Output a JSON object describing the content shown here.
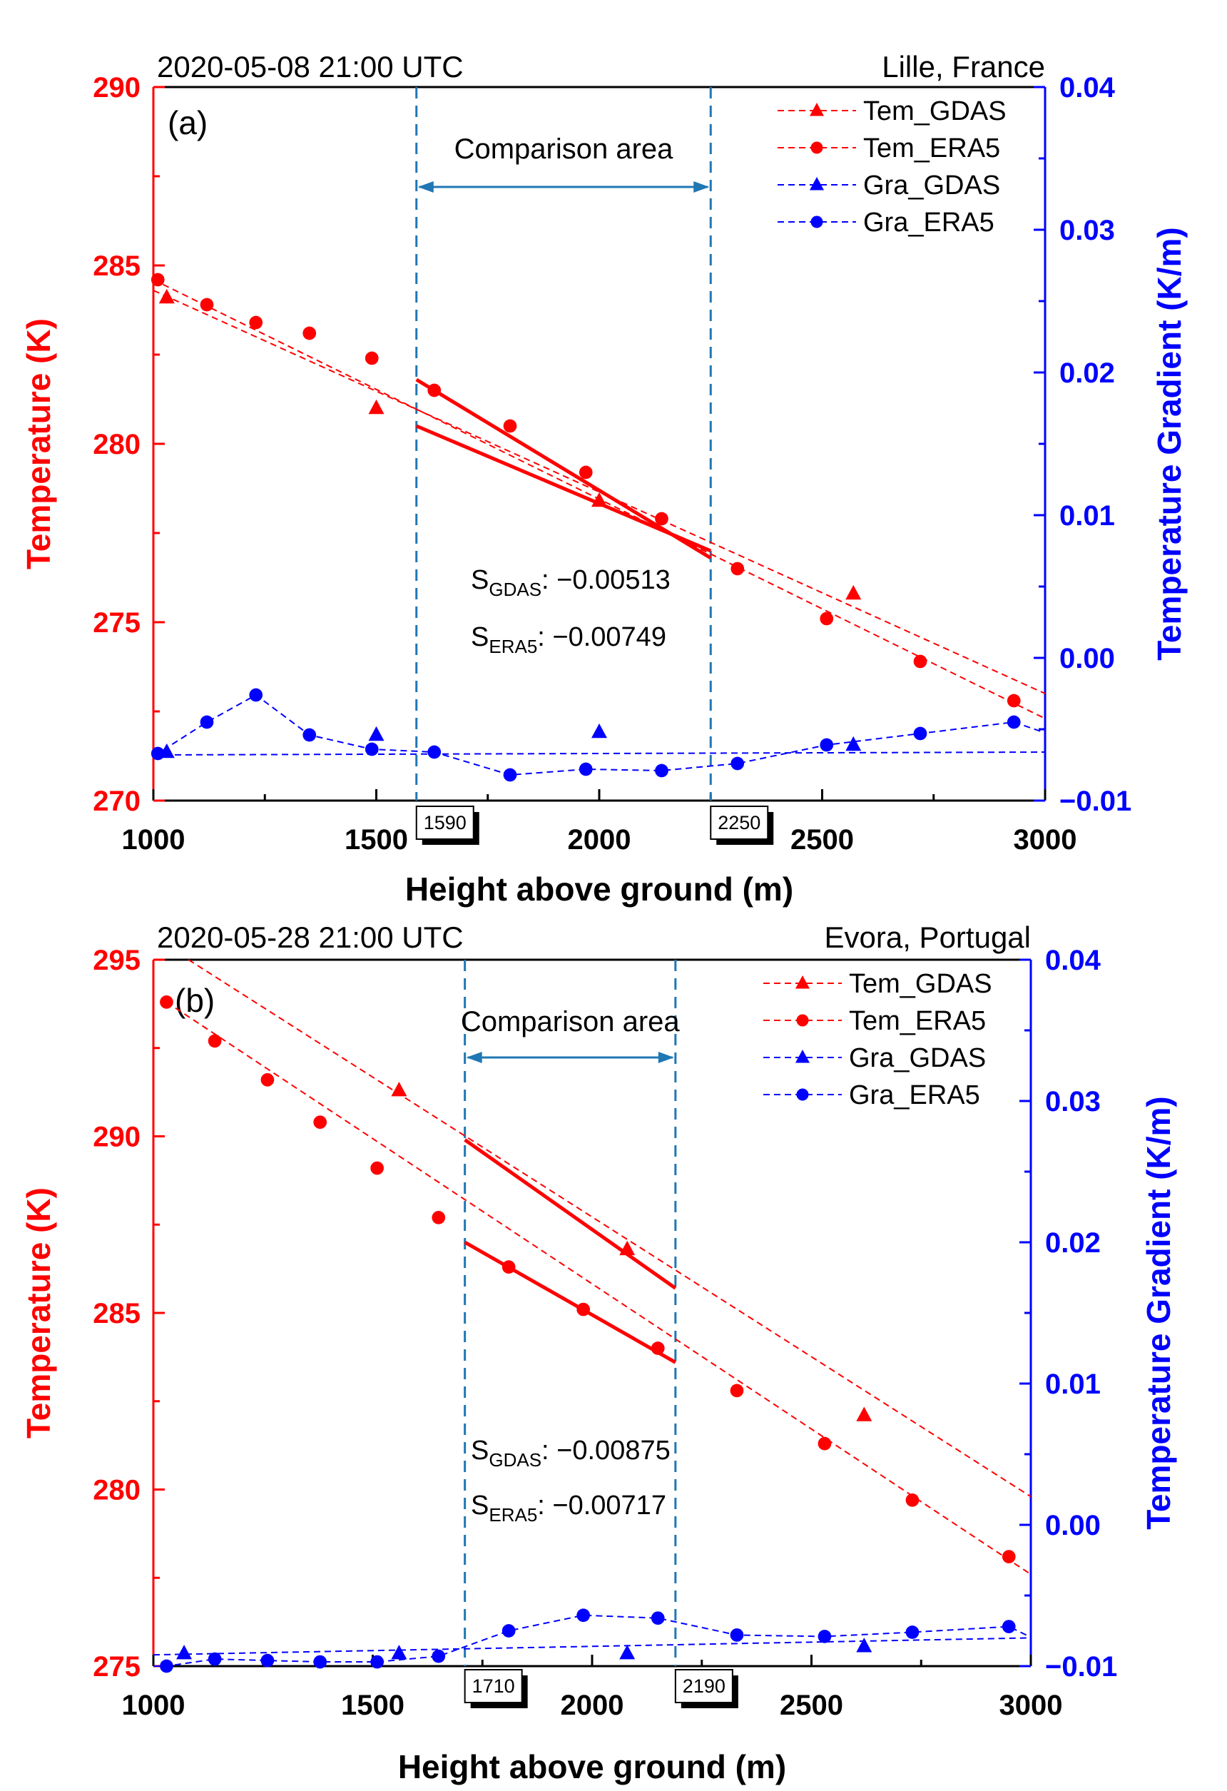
{
  "chart_data": [
    {
      "type": "line",
      "panel_label": "(a)",
      "title_left": "2020-05-08  21:00 UTC",
      "title_right": "Lille, France",
      "xlabel": "Height above ground (m)",
      "ylabel_left": "Temperature (K)",
      "ylabel_right": "Temperature Gradient (K/m)",
      "xlim": [
        1000,
        3000
      ],
      "ylim_left": [
        270,
        290
      ],
      "ylim_right": [
        -0.01,
        0.04
      ],
      "x_ticks": [
        "1000",
        "1500",
        "2000",
        "2500",
        "3000"
      ],
      "y_left_ticks": [
        "270",
        "275",
        "280",
        "285",
        "290"
      ],
      "y_right_ticks": [
        "−0.01",
        "0.00",
        "0.01",
        "0.02",
        "0.03",
        "0.04"
      ],
      "comparison_area": {
        "label": "Comparison area",
        "x_start": 1590,
        "x_end": 2250,
        "start_label": "1590",
        "end_label": "2250"
      },
      "annotations": [
        {
          "prefix": "S",
          "sub": "GDAS",
          "value": ": −0.00513"
        },
        {
          "prefix": "S",
          "sub": "ERA5",
          "value": ": −0.00749"
        }
      ],
      "legend": [
        "Tem_GDAS",
        "Tem_ERA5",
        "Gra_GDAS",
        "Gra_ERA5"
      ],
      "series": [
        {
          "name": "Tem_GDAS",
          "axis": "left",
          "marker": "triangle",
          "color": "#ff0000",
          "x": [
            1030,
            1500,
            2000,
            2570
          ],
          "y": [
            284.1,
            281.0,
            278.4,
            275.8
          ],
          "trend_x": [
            1000,
            3000
          ],
          "trend_y": [
            284.3,
            273.0
          ],
          "fit_x": [
            1590,
            2250
          ],
          "fit_y": [
            280.5,
            277.0
          ]
        },
        {
          "name": "Tem_ERA5",
          "axis": "left",
          "marker": "circle",
          "color": "#ff0000",
          "x": [
            1010,
            1120,
            1230,
            1350,
            1490,
            1630,
            1800,
            1970,
            2140,
            2310,
            2510,
            2720,
            2930
          ],
          "y": [
            284.6,
            283.9,
            283.4,
            283.1,
            282.4,
            281.5,
            280.5,
            279.2,
            277.9,
            276.5,
            275.1,
            273.9,
            272.8
          ],
          "trend_x": [
            1000,
            3000
          ],
          "trend_y": [
            284.6,
            272.3
          ],
          "fit_x": [
            1590,
            2250
          ],
          "fit_y": [
            281.8,
            276.8
          ]
        },
        {
          "name": "Gra_GDAS",
          "axis": "right",
          "marker": "triangle",
          "color": "#0000ff",
          "x": [
            1030,
            1500,
            2000,
            2570
          ],
          "y": [
            -0.0066,
            -0.0054,
            -0.0052,
            -0.0061
          ],
          "trend_x": [
            1000,
            3000
          ],
          "trend_y": [
            -0.0068,
            -0.0066
          ]
        },
        {
          "name": "Gra_ERA5",
          "axis": "right",
          "marker": "circle",
          "color": "#0000ff",
          "x": [
            1010,
            1120,
            1230,
            1350,
            1490,
            1630,
            1800,
            1970,
            2140,
            2310,
            2510,
            2720,
            2930
          ],
          "y": [
            -0.0067,
            -0.0045,
            -0.0026,
            -0.0054,
            -0.0064,
            -0.0066,
            -0.0082,
            -0.0078,
            -0.0079,
            -0.0074,
            -0.0061,
            -0.0053,
            -0.0045
          ],
          "trend_x": [
            1000,
            3000
          ],
          "trend_y": null
        }
      ]
    },
    {
      "type": "line",
      "panel_label": "(b)",
      "title_left": "2020-05-28  21:00 UTC",
      "title_right": "Evora, Portugal",
      "xlabel": "Height above ground (m)",
      "ylabel_left": "Temperature (K)",
      "ylabel_right": "Temperature Gradient (K/m)",
      "xlim": [
        1000,
        3000
      ],
      "ylim_left": [
        275,
        295
      ],
      "ylim_right": [
        -0.01,
        0.04
      ],
      "x_ticks": [
        "1000",
        "1500",
        "2000",
        "2500",
        "3000"
      ],
      "y_left_ticks": [
        "275",
        "280",
        "285",
        "290",
        "295"
      ],
      "y_right_ticks": [
        "−0.01",
        "0.00",
        "0.01",
        "0.02",
        "0.03",
        "0.04"
      ],
      "comparison_area": {
        "label": "Comparison area",
        "x_start": 1710,
        "x_end": 2190,
        "start_label": "1710",
        "end_label": "2190"
      },
      "annotations": [
        {
          "prefix": "S",
          "sub": "GDAS",
          "value": ": −0.00875"
        },
        {
          "prefix": "S",
          "sub": "ERA5",
          "value": ": −0.00717"
        }
      ],
      "legend": [
        "Tem_GDAS",
        "Tem_ERA5",
        "Gra_GDAS",
        "Gra_ERA5"
      ],
      "series": [
        {
          "name": "Tem_GDAS",
          "axis": "left",
          "marker": "triangle",
          "color": "#ff0000",
          "x": [
            1560,
            2080,
            2620
          ],
          "y": [
            291.3,
            286.8,
            282.1
          ],
          "trend_x": [
            1080,
            3000
          ],
          "trend_y": [
            295.0,
            279.8
          ],
          "fit_x": [
            1710,
            2190
          ],
          "fit_y": [
            289.9,
            285.7
          ]
        },
        {
          "name": "Tem_ERA5",
          "axis": "left",
          "marker": "circle",
          "color": "#ff0000",
          "x": [
            1030,
            1140,
            1260,
            1380,
            1510,
            1650,
            1810,
            1980,
            2150,
            2330,
            2530,
            2730,
            2950
          ],
          "y": [
            293.8,
            292.7,
            291.6,
            290.4,
            289.1,
            287.7,
            286.3,
            285.1,
            284.0,
            282.8,
            281.3,
            279.7,
            278.1
          ],
          "trend_x": [
            1030,
            3000
          ],
          "trend_y": [
            293.8,
            277.6
          ],
          "fit_x": [
            1710,
            2190
          ],
          "fit_y": [
            287.0,
            283.6
          ]
        },
        {
          "name": "Gra_GDAS",
          "axis": "right",
          "marker": "triangle",
          "color": "#0000ff",
          "x": [
            1070,
            1560,
            2080,
            2620
          ],
          "y": [
            -0.0091,
            -0.0091,
            -0.0091,
            -0.0086
          ],
          "trend_x": [
            1000,
            3000
          ],
          "trend_y": [
            -0.0092,
            -0.008
          ]
        },
        {
          "name": "Gra_ERA5",
          "axis": "right",
          "marker": "circle",
          "color": "#0000ff",
          "x": [
            1030,
            1140,
            1260,
            1380,
            1510,
            1650,
            1810,
            1980,
            2150,
            2330,
            2530,
            2730,
            2950
          ],
          "y": [
            -0.01,
            -0.0095,
            -0.0096,
            -0.0097,
            -0.0097,
            -0.0093,
            -0.0075,
            -0.0064,
            -0.0066,
            -0.0078,
            -0.0079,
            -0.0076,
            -0.0072
          ],
          "trend_x": [
            1000,
            3000
          ],
          "trend_y": null
        }
      ]
    }
  ]
}
